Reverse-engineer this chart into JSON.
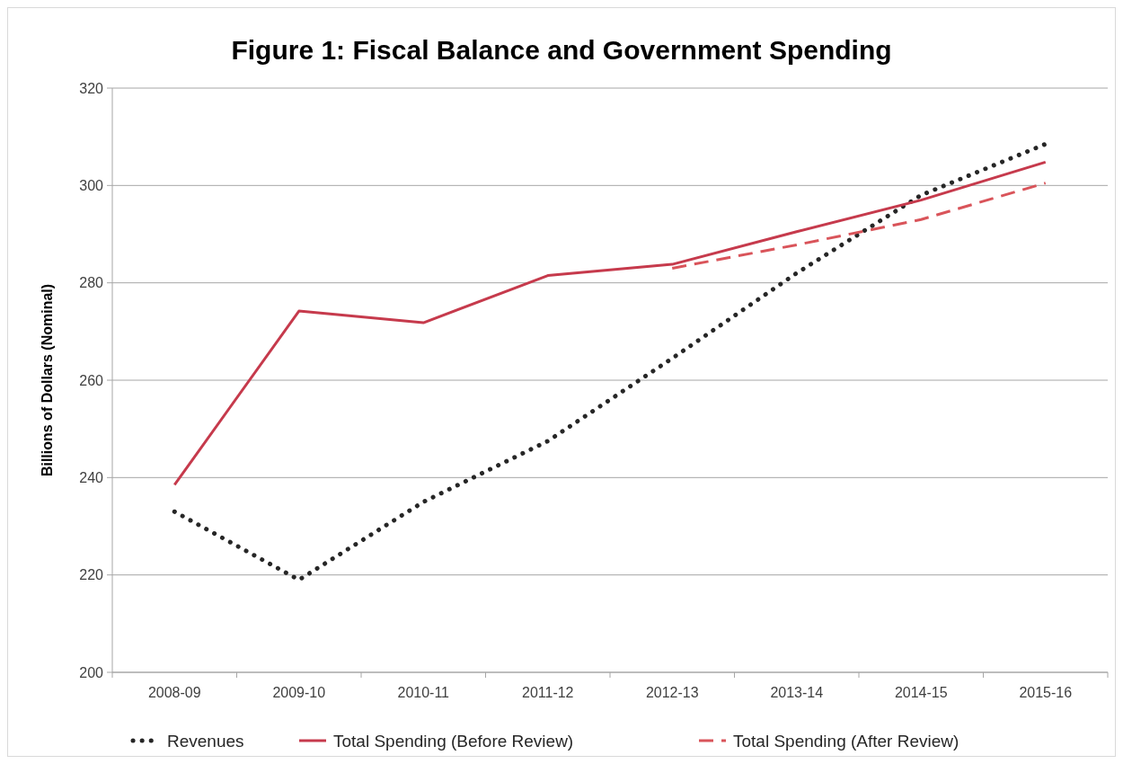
{
  "chart_data": {
    "type": "line",
    "title": "Figure 1: Fiscal Balance and Government Spending",
    "ylabel": "Billions of Dollars (Nominal)",
    "categories": [
      "2008-09",
      "2009-10",
      "2010-11",
      "2011-12",
      "2012-13",
      "2013-14",
      "2014-15",
      "2015-16"
    ],
    "series": [
      {
        "name": "Revenues",
        "color": "#262626",
        "line_style": "dotted",
        "values": [
          233,
          219,
          235,
          247.5,
          264.5,
          282,
          298,
          308.5
        ]
      },
      {
        "name": "Total Spending (Before Review)",
        "color": "#c63a4c",
        "line_style": "solid",
        "values": [
          238.5,
          274.2,
          271.8,
          281.5,
          283.8,
          290.5,
          297,
          304.8
        ]
      },
      {
        "name": "Total Spending (After Review)",
        "color": "#d9545a",
        "line_style": "dashed",
        "values": [
          null,
          null,
          null,
          null,
          283,
          287.8,
          293,
          300.5
        ]
      }
    ],
    "ylim": [
      200,
      320
    ],
    "yticks": [
      200,
      220,
      240,
      260,
      280,
      300,
      320
    ],
    "grid": "y",
    "legend": "bottom"
  }
}
